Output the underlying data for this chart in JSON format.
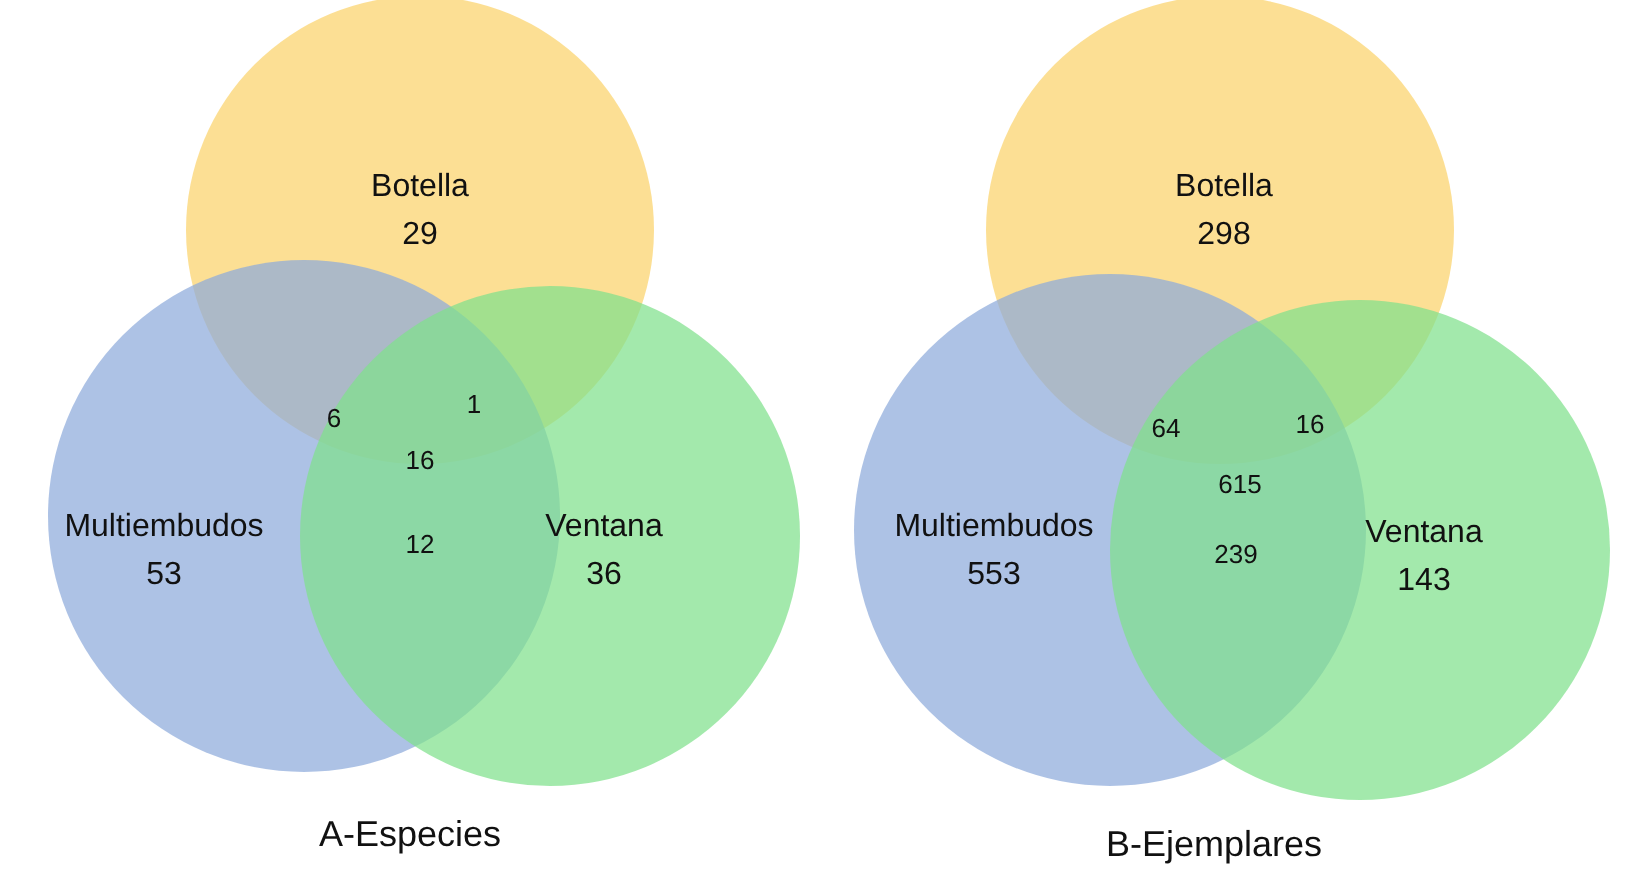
{
  "chart_data": [
    {
      "type": "other",
      "title": "A-Especies",
      "categories": [
        "Botella",
        "Multiembudos",
        "Ventana"
      ],
      "values": [
        29,
        53,
        36
      ],
      "data_labels": true,
      "colors": [
        "#fbd36b",
        "#8eaadb",
        "#7fe08c"
      ],
      "annotations": [
        "6",
        "1",
        "12",
        "16"
      ]
    },
    {
      "type": "other",
      "title": "B-Ejemplares",
      "categories": [
        "Botella",
        "Multiembudos",
        "Ventana"
      ],
      "values": [
        298,
        553,
        143
      ],
      "data_labels": true,
      "colors": [
        "#fbd36b",
        "#8eaadb",
        "#7fe08c"
      ],
      "annotations": [
        "64",
        "16",
        "239",
        "615"
      ]
    }
  ]
}
